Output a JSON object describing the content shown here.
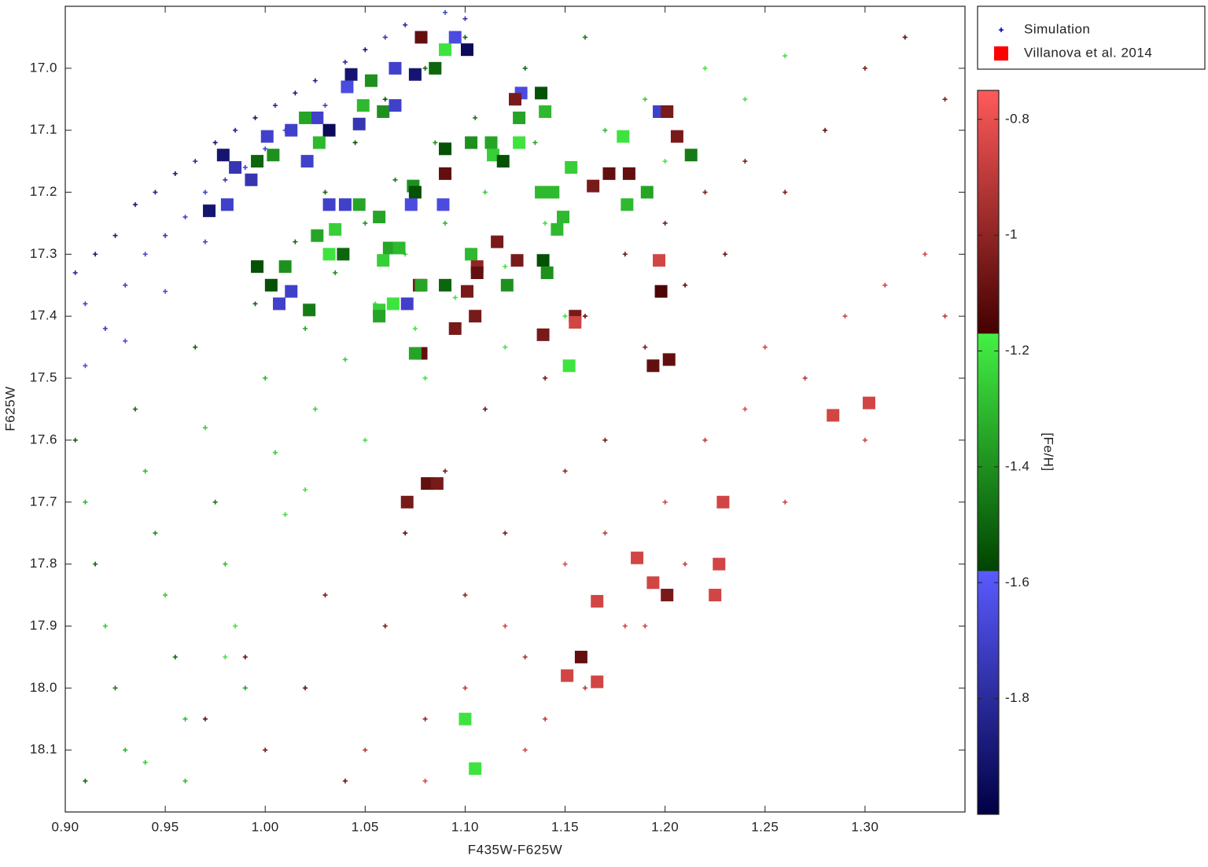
{
  "chart_data": {
    "type": "scatter",
    "xlabel": "F435W-F625W",
    "ylabel": "F625W",
    "clabel": "[Fe/H]",
    "xlim": [
      0.9,
      1.35
    ],
    "ylim": [
      16.9,
      18.2
    ],
    "y_reversed": true,
    "clim": [
      -2.0,
      -0.75
    ],
    "xticks": [
      {
        "value": 0.9,
        "label": "0.90"
      },
      0.95,
      {
        "value": 1.0,
        "label": "1.00"
      },
      1.05,
      {
        "value": 1.1,
        "label": "1.10"
      },
      1.15,
      {
        "value": 1.2,
        "label": "1.20"
      },
      1.25,
      {
        "value": 1.3,
        "label": "1.30"
      }
    ],
    "yticks": [
      {
        "value": 17.0,
        "label": "17.0"
      },
      17.1,
      17.2,
      17.3,
      17.4,
      17.5,
      17.6,
      17.7,
      17.8,
      17.9,
      {
        "value": 18.0,
        "label": "18.0"
      },
      18.1
    ],
    "cticks": [
      -0.8,
      -1,
      -1.2,
      -1.4,
      -1.6,
      -1.8
    ],
    "colormap": [
      {
        "range": [
          -2.0,
          -1.58
        ],
        "colors": [
          "#000044",
          "#5a5aff"
        ]
      },
      {
        "range": [
          -1.58,
          -1.17
        ],
        "colors": [
          "#004400",
          "#44f044"
        ]
      },
      {
        "range": [
          -1.17,
          -0.75
        ],
        "colors": [
          "#440000",
          "#ff5a5a"
        ]
      }
    ],
    "legend": "outside-top-right",
    "series": [
      {
        "name": "Simulation",
        "color": "#0000cc",
        "marker": "plus",
        "x": [
          0.905,
          0.91,
          0.915,
          0.92,
          0.925,
          0.93,
          0.935,
          0.94,
          0.945,
          0.95,
          0.955,
          0.96,
          0.965,
          0.97,
          0.975,
          0.98,
          0.985,
          0.99,
          0.995,
          1.0,
          1.005,
          1.01,
          1.015,
          1.02,
          1.025,
          1.03,
          1.04,
          1.05,
          1.06,
          1.07,
          1.09,
          1.1,
          0.91,
          0.93,
          0.95,
          0.97,
          0.905,
          0.91,
          0.915,
          0.92,
          0.925,
          0.93,
          0.91,
          0.935,
          0.94,
          0.945,
          0.95,
          0.955,
          0.96,
          0.965,
          0.97,
          0.975,
          0.98,
          0.985,
          0.99,
          0.995,
          1.0,
          1.005,
          1.01,
          1.015,
          1.02,
          1.025,
          1.03,
          1.035,
          1.04,
          1.045,
          1.05,
          1.055,
          1.06,
          1.065,
          1.07,
          1.075,
          1.08,
          1.085,
          1.09,
          1.095,
          1.1,
          1.105,
          1.11,
          1.12,
          1.13,
          1.135,
          1.14,
          1.15,
          1.16,
          1.17,
          1.18,
          1.19,
          1.2,
          1.22,
          1.24,
          1.26,
          1.12,
          1.08,
          1.05,
          1.02,
          0.98,
          0.94,
          0.96,
          0.97,
          0.99,
          1.0,
          1.02,
          1.03,
          1.04,
          1.06,
          1.07,
          1.08,
          1.09,
          1.1,
          1.11,
          1.12,
          1.13,
          1.14,
          1.15,
          1.16,
          1.17,
          1.18,
          1.19,
          1.2,
          1.21,
          1.22,
          1.23,
          1.24,
          1.26,
          1.28,
          1.3,
          1.32,
          1.34,
          1.05,
          1.08,
          1.1,
          1.12,
          1.14,
          1.15,
          1.17,
          1.18,
          1.2,
          1.22,
          1.24,
          1.25,
          1.27,
          1.29,
          1.31,
          1.33,
          1.34,
          1.3,
          1.26,
          1.21,
          1.19,
          1.16,
          1.13
        ],
        "y": [
          17.33,
          17.38,
          17.3,
          17.42,
          17.27,
          17.35,
          17.22,
          17.3,
          17.2,
          17.27,
          17.17,
          17.24,
          17.15,
          17.2,
          17.12,
          17.18,
          17.1,
          17.16,
          17.08,
          17.13,
          17.06,
          17.1,
          17.04,
          17.08,
          17.02,
          17.06,
          16.99,
          16.97,
          16.95,
          16.93,
          16.91,
          16.92,
          17.48,
          17.44,
          17.36,
          17.28,
          17.6,
          17.7,
          17.8,
          17.9,
          18.0,
          18.1,
          18.15,
          17.55,
          17.65,
          17.75,
          17.85,
          17.95,
          18.05,
          17.45,
          17.58,
          17.7,
          17.8,
          17.9,
          18.0,
          17.38,
          17.5,
          17.62,
          17.72,
          17.28,
          17.42,
          17.55,
          17.2,
          17.33,
          17.47,
          17.12,
          17.25,
          17.38,
          17.05,
          17.18,
          17.3,
          17.42,
          17.0,
          17.12,
          17.25,
          17.37,
          16.95,
          17.08,
          17.2,
          17.32,
          17.0,
          17.12,
          17.25,
          17.4,
          16.95,
          17.1,
          17.22,
          17.05,
          17.15,
          17.0,
          17.05,
          16.98,
          17.45,
          17.5,
          17.6,
          17.68,
          17.95,
          18.12,
          18.15,
          18.05,
          17.95,
          18.1,
          18.0,
          17.85,
          18.15,
          17.9,
          17.75,
          18.05,
          17.65,
          17.85,
          17.55,
          17.75,
          17.95,
          17.5,
          17.65,
          17.4,
          17.6,
          17.3,
          17.45,
          17.25,
          17.35,
          17.2,
          17.3,
          17.15,
          17.2,
          17.1,
          17.0,
          16.95,
          17.05,
          18.1,
          18.15,
          18.0,
          17.9,
          18.05,
          17.8,
          17.75,
          17.9,
          17.7,
          17.6,
          17.55,
          17.45,
          17.5,
          17.4,
          17.35,
          17.3,
          17.4,
          17.6,
          17.7,
          17.8,
          17.9,
          18.0,
          18.1
        ],
        "c": [
          -1.8,
          -1.7,
          -1.9,
          -1.75,
          -1.85,
          -1.7,
          -1.9,
          -1.7,
          -1.85,
          -1.75,
          -1.9,
          -1.7,
          -1.8,
          -1.7,
          -1.9,
          -1.75,
          -1.85,
          -1.7,
          -1.9,
          -1.7,
          -1.8,
          -1.7,
          -1.9,
          -1.7,
          -1.85,
          -1.7,
          -1.8,
          -1.9,
          -1.75,
          -1.8,
          -1.7,
          -1.75,
          -1.65,
          -1.65,
          -1.65,
          -1.7,
          -1.5,
          -1.3,
          -1.5,
          -1.25,
          -1.45,
          -1.3,
          -1.5,
          -1.5,
          -1.3,
          -1.4,
          -1.25,
          -1.5,
          -1.3,
          -1.5,
          -1.25,
          -1.45,
          -1.3,
          -1.2,
          -1.35,
          -1.5,
          -1.3,
          -1.25,
          -1.2,
          -1.5,
          -1.35,
          -1.25,
          -1.5,
          -1.4,
          -1.25,
          -1.55,
          -1.4,
          -1.2,
          -1.55,
          -1.45,
          -1.25,
          -1.2,
          -1.5,
          -1.4,
          -1.3,
          -1.2,
          -1.5,
          -1.45,
          -1.25,
          -1.2,
          -1.5,
          -1.35,
          -1.2,
          -1.2,
          -1.45,
          -1.3,
          -1.2,
          -1.25,
          -1.2,
          -1.2,
          -1.2,
          -1.2,
          -1.2,
          -1.2,
          -1.2,
          -1.2,
          -1.2,
          -1.25,
          -1.3,
          -1.1,
          -1.1,
          -1.05,
          -1.1,
          -1.05,
          -1.1,
          -1.05,
          -1.1,
          -1.0,
          -1.05,
          -1.0,
          -1.1,
          -1.05,
          -0.95,
          -1.05,
          -1.0,
          -1.1,
          -1.05,
          -1.1,
          -1.05,
          -1.05,
          -1.1,
          -1.05,
          -1.1,
          -1.05,
          -1.05,
          -1.1,
          -1.05,
          -1.1,
          -1.05,
          -0.9,
          -0.85,
          -0.9,
          -0.85,
          -0.9,
          -0.85,
          -0.9,
          -0.85,
          -0.85,
          -0.9,
          -0.85,
          -0.85,
          -0.9,
          -0.85,
          -0.85,
          -0.85,
          -0.9,
          -0.85,
          -0.85,
          -0.9,
          -0.85,
          -0.9,
          -0.85
        ]
      },
      {
        "name": "Villanova et al. 2014",
        "color": "#ff0000",
        "marker": "square",
        "x": [
          1.078,
          1.095,
          1.09,
          1.101,
          1.085,
          1.075,
          1.065,
          1.043,
          1.053,
          1.041,
          1.128,
          1.125,
          1.138,
          1.049,
          1.059,
          1.065,
          1.14,
          1.127,
          1.197,
          1.201,
          1.047,
          1.032,
          1.026,
          1.02,
          1.027,
          1.013,
          1.001,
          1.004,
          0.996,
          1.021,
          0.979,
          0.985,
          0.993,
          0.972,
          0.981,
          1.09,
          1.103,
          1.113,
          1.114,
          1.119,
          1.127,
          1.179,
          1.206,
          1.213,
          1.09,
          1.153,
          1.172,
          1.182,
          1.164,
          1.074,
          1.075,
          1.138,
          1.144,
          1.191,
          1.181,
          1.089,
          1.073,
          1.032,
          1.04,
          1.047,
          1.057,
          1.149,
          1.146,
          1.116,
          1.035,
          1.026,
          1.062,
          1.067,
          1.039,
          1.103,
          1.126,
          1.139,
          1.141,
          1.059,
          1.032,
          1.106,
          1.106,
          1.197,
          0.996,
          1.01,
          1.003,
          1.013,
          1.007,
          1.022,
          1.077,
          1.078,
          1.09,
          1.101,
          1.121,
          1.198,
          1.071,
          1.064,
          1.057,
          1.057,
          1.105,
          1.095,
          1.155,
          1.155,
          1.139,
          1.078,
          1.075,
          1.152,
          1.194,
          1.202,
          1.284,
          1.302,
          1.081,
          1.086,
          1.071,
          1.229,
          1.186,
          1.227,
          1.194,
          1.201,
          1.225,
          1.166,
          1.158,
          1.151,
          1.166,
          1.1,
          1.105
        ],
        "y": [
          16.95,
          16.95,
          16.97,
          16.97,
          17.0,
          17.01,
          17.0,
          17.01,
          17.02,
          17.03,
          17.04,
          17.05,
          17.04,
          17.06,
          17.07,
          17.06,
          17.07,
          17.08,
          17.07,
          17.07,
          17.09,
          17.1,
          17.08,
          17.08,
          17.12,
          17.1,
          17.11,
          17.14,
          17.15,
          17.15,
          17.14,
          17.16,
          17.18,
          17.23,
          17.22,
          17.13,
          17.12,
          17.12,
          17.14,
          17.15,
          17.12,
          17.11,
          17.11,
          17.14,
          17.17,
          17.16,
          17.17,
          17.17,
          17.19,
          17.19,
          17.2,
          17.2,
          17.2,
          17.2,
          17.22,
          17.22,
          17.22,
          17.22,
          17.22,
          17.22,
          17.24,
          17.24,
          17.26,
          17.28,
          17.26,
          17.27,
          17.29,
          17.29,
          17.3,
          17.3,
          17.31,
          17.31,
          17.33,
          17.31,
          17.3,
          17.32,
          17.33,
          17.31,
          17.32,
          17.32,
          17.35,
          17.36,
          17.38,
          17.39,
          17.35,
          17.35,
          17.35,
          17.36,
          17.35,
          17.36,
          17.38,
          17.38,
          17.39,
          17.4,
          17.4,
          17.42,
          17.4,
          17.41,
          17.43,
          17.46,
          17.46,
          17.48,
          17.48,
          17.47,
          17.56,
          17.54,
          17.67,
          17.67,
          17.7,
          17.7,
          17.79,
          17.8,
          17.83,
          17.85,
          17.85,
          17.86,
          17.95,
          17.98,
          17.99,
          18.05,
          18.13
        ],
        "c": [
          -1.1,
          -1.65,
          -1.2,
          -1.95,
          -1.5,
          -1.9,
          -1.7,
          -1.9,
          -1.4,
          -1.65,
          -1.65,
          -1.05,
          -1.55,
          -1.3,
          -1.4,
          -1.7,
          -1.3,
          -1.35,
          -1.7,
          -1.05,
          -1.75,
          -1.95,
          -1.7,
          -1.35,
          -1.3,
          -1.7,
          -1.7,
          -1.4,
          -1.5,
          -1.7,
          -1.9,
          -1.75,
          -1.75,
          -1.9,
          -1.7,
          -1.55,
          -1.4,
          -1.35,
          -1.25,
          -1.55,
          -1.2,
          -1.2,
          -1.05,
          -1.45,
          -1.1,
          -1.25,
          -1.1,
          -1.1,
          -1.05,
          -1.4,
          -1.55,
          -1.3,
          -1.3,
          -1.35,
          -1.3,
          -1.65,
          -1.65,
          -1.7,
          -1.7,
          -1.35,
          -1.35,
          -1.3,
          -1.3,
          -1.05,
          -1.25,
          -1.35,
          -1.35,
          -1.3,
          -1.5,
          -1.3,
          -1.05,
          -1.55,
          -1.4,
          -1.25,
          -1.2,
          -1.0,
          -1.1,
          -0.85,
          -1.55,
          -1.4,
          -1.55,
          -1.7,
          -1.7,
          -1.45,
          -1.05,
          -1.35,
          -1.5,
          -1.05,
          -1.4,
          -1.15,
          -1.7,
          -1.2,
          -1.25,
          -1.35,
          -1.05,
          -1.05,
          -1.05,
          -0.85,
          -1.05,
          -1.1,
          -1.35,
          -1.2,
          -1.1,
          -1.1,
          -0.85,
          -0.85,
          -1.1,
          -1.05,
          -1.05,
          -0.85,
          -0.85,
          -0.85,
          -0.85,
          -1.05,
          -0.85,
          -0.85,
          -1.1,
          -0.85,
          -0.85,
          -1.2,
          -1.2
        ]
      }
    ]
  }
}
